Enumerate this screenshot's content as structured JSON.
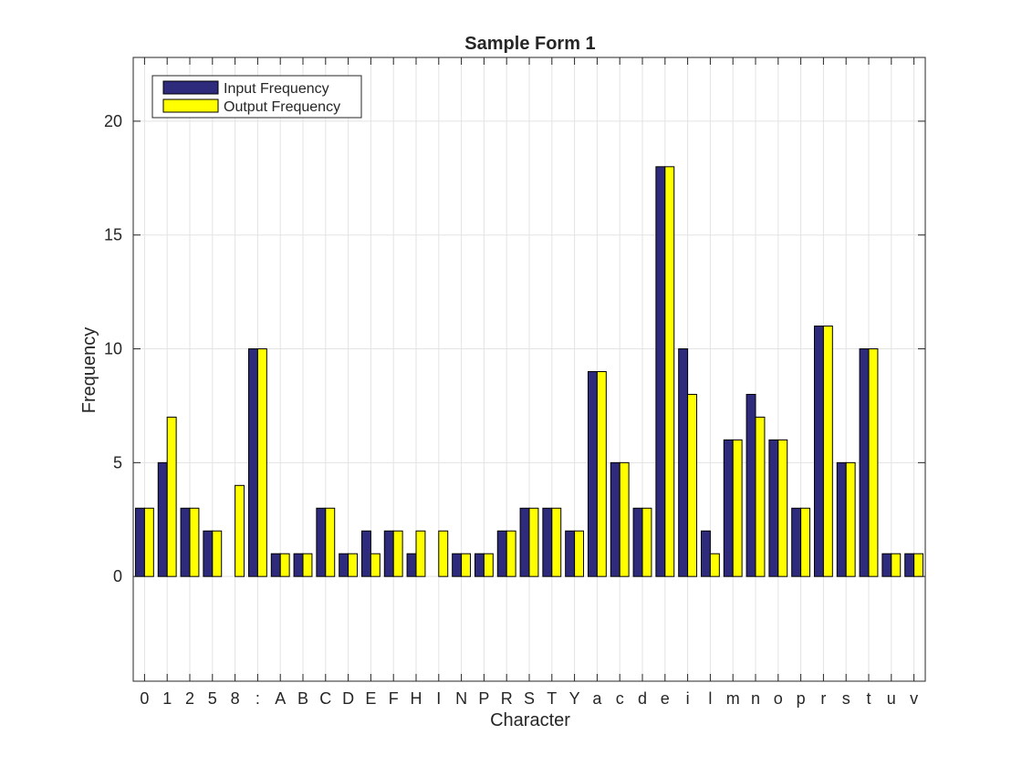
{
  "chart_data": {
    "type": "bar",
    "title": "Sample Form 1",
    "xlabel": "Character",
    "ylabel": "Frequency",
    "categories": [
      "0",
      "1",
      "2",
      "5",
      "8",
      ":",
      "A",
      "B",
      "C",
      "D",
      "E",
      "F",
      "H",
      "I",
      "N",
      "P",
      "R",
      "S",
      "T",
      "Y",
      "a",
      "c",
      "d",
      "e",
      "i",
      "l",
      "m",
      "n",
      "o",
      "p",
      "r",
      "s",
      "t",
      "u",
      "v"
    ],
    "series": [
      {
        "name": "Input Frequency",
        "color": "#2e2a7c",
        "values": [
          3,
          5,
          3,
          2,
          0,
          10,
          1,
          1,
          3,
          1,
          2,
          2,
          1,
          0,
          1,
          1,
          2,
          3,
          3,
          2,
          9,
          5,
          3,
          18,
          10,
          2,
          6,
          8,
          6,
          3,
          11,
          5,
          10,
          1,
          1
        ]
      },
      {
        "name": "Output Frequency",
        "color": "#ffff00",
        "values": [
          3,
          7,
          3,
          2,
          4,
          10,
          1,
          1,
          3,
          1,
          1,
          2,
          2,
          2,
          1,
          1,
          2,
          3,
          3,
          2,
          9,
          5,
          3,
          18,
          8,
          1,
          6,
          7,
          6,
          3,
          11,
          5,
          10,
          1,
          1
        ]
      }
    ],
    "ylim": [
      -4.6,
      22.8
    ],
    "yticks": [
      0,
      5,
      10,
      15,
      20
    ],
    "grid": true,
    "legend": "top-left"
  }
}
